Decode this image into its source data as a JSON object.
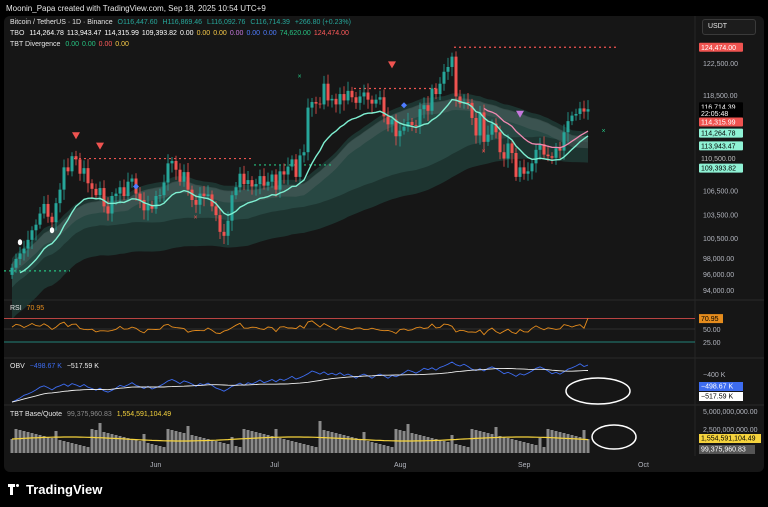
{
  "header": {
    "created_by": "Moonin_Papa created with TradingView.com, Sep 18, 2025 10:54 UTC+9"
  },
  "currency_button": "USDT",
  "brand": {
    "name": "TradingView"
  },
  "legend": {
    "symbol": "Bitcoin / TetherUS · 1D · Binance",
    "ohlc": [
      "O116,447.60",
      "H116,869.46",
      "L116,092.76",
      "C116,714.39",
      "+266.80 (+0.23%)"
    ],
    "tbo_label": "TBO",
    "tbo_values": [
      {
        "v": "114,264.78",
        "c": "#ffffff"
      },
      {
        "v": "113,943.47",
        "c": "#ffffff"
      },
      {
        "v": "114,315.99",
        "c": "#ffffff"
      },
      {
        "v": "109,393.82",
        "c": "#ffffff"
      },
      {
        "v": "0.00",
        "c": "#ffffff"
      },
      {
        "v": "0.00",
        "c": "#f7c948"
      },
      {
        "v": "0.00",
        "c": "#f7c948"
      },
      {
        "v": "0.00",
        "c": "#c678dd"
      },
      {
        "v": "0.00",
        "c": "#4e7cff"
      },
      {
        "v": "0.00",
        "c": "#4e7cff"
      },
      {
        "v": "74,620.00",
        "c": "#26c281"
      },
      {
        "v": "124,474.00",
        "c": "#ff5b5b"
      }
    ],
    "tbtdiv_label": "TBT Divergence",
    "tbtdiv_values": [
      {
        "v": "0.00",
        "c": "#26c281"
      },
      {
        "v": "0.00",
        "c": "#26c281"
      },
      {
        "v": "0.00",
        "c": "#ff5b5b"
      },
      {
        "v": "0.00",
        "c": "#f7c948"
      }
    ],
    "rsi_label": "RSI",
    "rsi_value": "70.95",
    "obv_label": "OBV",
    "obv_v1": "−498.67 K",
    "obv_v2": "−517.59 K",
    "vol_label": "TBT Base/Quote",
    "vol_v1": "99,375,960.83",
    "vol_v2": "1,554,591,104.49"
  },
  "colors": {
    "up": "#26a69a",
    "down": "#ef5350",
    "band": "#7ff0d2",
    "slow": "#f28ab2",
    "rsi": "#e58c1d",
    "obv": "#3d6cf0",
    "obv_ma": "#f0f0f0",
    "vol_ma": "#f5d33d",
    "vol_bar": "#8a8a8a"
  },
  "chart_data": [
    {
      "type": "candlestick",
      "pane": "price",
      "y_ticks": [
        122500,
        118500,
        110500,
        106500,
        103500,
        100500,
        98000,
        96000,
        94000
      ],
      "y_tick_labels": [
        "122,500.00",
        "118,500.00",
        "110,500.00",
        "106,500.00",
        "103,500.00",
        "100,500.00",
        "98,000.00",
        "96,000.00",
        "94,000.00"
      ],
      "ylim": [
        92500,
        127000
      ],
      "x_labels": [
        {
          "label": "Jun",
          "day": 36
        },
        {
          "label": "Jul",
          "day": 66
        },
        {
          "label": "Aug",
          "day": 97
        },
        {
          "label": "Sep",
          "day": 128
        },
        {
          "label": "Oct",
          "day": 158
        }
      ],
      "close": [
        96800,
        97900,
        98600,
        99200,
        100300,
        101500,
        102200,
        103600,
        104800,
        103200,
        102500,
        104900,
        106600,
        109400,
        108900,
        110800,
        110400,
        108600,
        109300,
        107400,
        106700,
        105900,
        106800,
        104500,
        103600,
        105800,
        106100,
        106900,
        105800,
        107600,
        108000,
        106100,
        105300,
        104000,
        104700,
        104200,
        105800,
        105900,
        107500,
        109900,
        110200,
        109100,
        107600,
        108800,
        106600,
        105300,
        104700,
        106100,
        105800,
        106000,
        104500,
        103400,
        101300,
        100800,
        102700,
        105900,
        106900,
        108600,
        107300,
        107800,
        107000,
        107300,
        108300,
        107100,
        107600,
        108500,
        106600,
        108900,
        108500,
        109500,
        110400,
        108200,
        110900,
        111300,
        116900,
        117600,
        117400,
        117300,
        119900,
        117800,
        118000,
        117300,
        118600,
        117800,
        119000,
        118200,
        117500,
        118300,
        118800,
        117900,
        117400,
        117900,
        118200,
        115800,
        114800,
        115400,
        113300,
        114000,
        114500,
        115100,
        114700,
        114600,
        116700,
        117200,
        116500,
        119300,
        118600,
        119900,
        121400,
        122000,
        123300,
        118300,
        117400,
        117600,
        117500,
        115600,
        113400,
        116300,
        112600,
        113500,
        114900,
        113800,
        111300,
        110500,
        112400,
        111200,
        108200,
        109400,
        108600,
        108900,
        109900,
        111600,
        112300,
        111000,
        110800,
        110600,
        111800,
        111500,
        113800,
        115200,
        115900,
        116100,
        116800,
        116400,
        116700
      ],
      "annotations": {
        "resistance_top": 124474,
        "support_low": 96400,
        "mid_dotted": 110500,
        "mid_dotted_green": 109700
      }
    },
    {
      "type": "line",
      "pane": "rsi",
      "name": "RSI",
      "levels": [
        70,
        50,
        25
      ],
      "y_tick_labels": [
        "50.00",
        "25.00"
      ],
      "last": 70.95
    },
    {
      "type": "line",
      "pane": "obv",
      "name": "OBV",
      "y_tick_labels": [
        "−400 K"
      ],
      "last": [
        -498.67,
        -517.59
      ]
    },
    {
      "type": "bar",
      "pane": "volume",
      "name": "TBT Base/Quote",
      "y_tick_labels": [
        "5,000,000,000.00",
        "2,500,000,000.00"
      ],
      "last": [
        1554591104.49,
        99375960.83
      ]
    }
  ],
  "price_badges": [
    {
      "text": "124,474.00",
      "bg": "#ef5350",
      "fg": "#ffffff",
      "price": 124474
    },
    {
      "text": "116,714.39",
      "bg": "#000000",
      "fg": "#ffffff",
      "price": 117000
    },
    {
      "text": "22:05:48",
      "bg": "#000000",
      "fg": "#ffffff",
      "price": 116200
    },
    {
      "text": "114,315.99",
      "bg": "#ef5350",
      "fg": "#ffffff",
      "price": 115100
    },
    {
      "text": "114,264.78",
      "bg": "#8ff2d5",
      "fg": "#000000",
      "price": 113700
    },
    {
      "text": "113,943.47",
      "bg": "#8ff2d5",
      "fg": "#000000",
      "price": 112100
    },
    {
      "text": "110,500.00",
      "bg": "#161616",
      "fg": "#bbbbbb",
      "price": 110500
    },
    {
      "text": "109,393.82",
      "bg": "#8ff2d5",
      "fg": "#000000",
      "price": 109300
    }
  ]
}
